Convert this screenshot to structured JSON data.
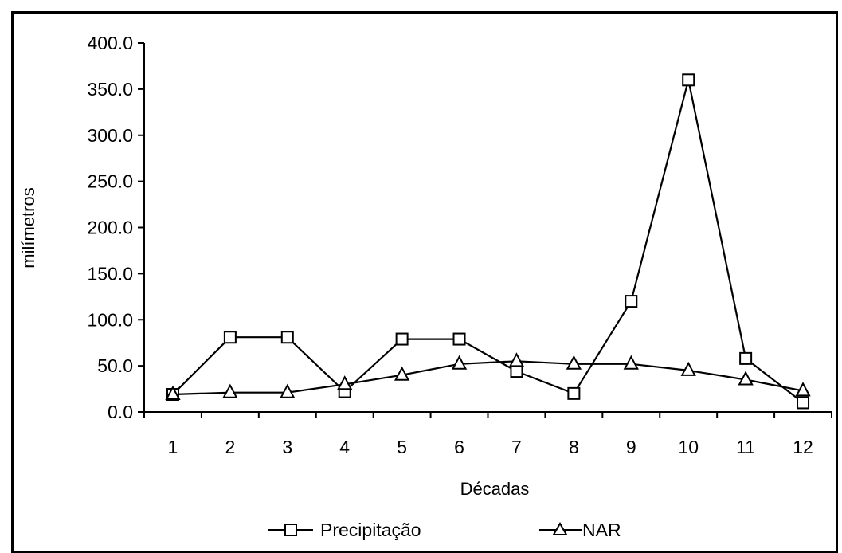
{
  "chart_data": {
    "type": "line",
    "categories": [
      "1",
      "2",
      "3",
      "4",
      "5",
      "6",
      "7",
      "8",
      "9",
      "10",
      "11",
      "12"
    ],
    "series": [
      {
        "name": "Precipitação",
        "marker": "square",
        "values": [
          19,
          81,
          81,
          22,
          79,
          79,
          44,
          20,
          120,
          360,
          58,
          10
        ]
      },
      {
        "name": "NAR",
        "marker": "triangle",
        "values": [
          19,
          21,
          21,
          30,
          40,
          52,
          55,
          52,
          52,
          45,
          35,
          23
        ]
      }
    ],
    "title": "",
    "xlabel": "Décadas",
    "ylabel": "milímetros",
    "ylim": [
      0,
      400
    ],
    "yticks": [
      "0.0",
      "50.0",
      "100.0",
      "150.0",
      "200.0",
      "250.0",
      "300.0",
      "350.0",
      "400.0"
    ],
    "grid": false,
    "legend_position": "bottom",
    "line_color": "#000000"
  }
}
